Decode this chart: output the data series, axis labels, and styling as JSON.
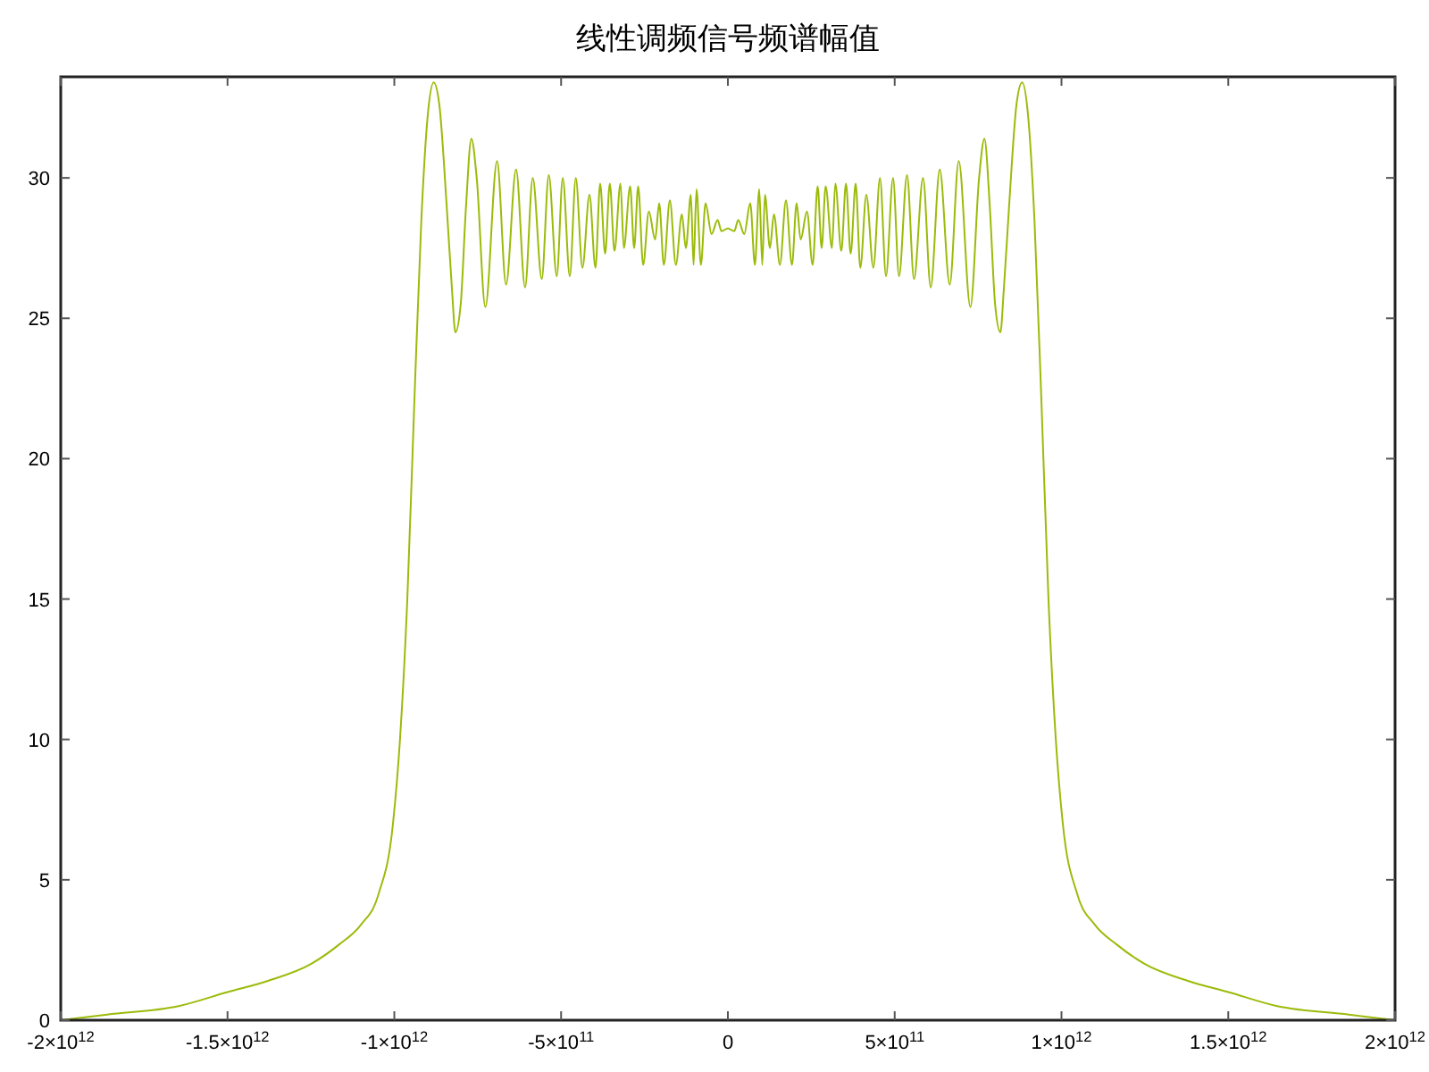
{
  "chart_data": {
    "type": "line",
    "title": "线性调频信号频谱幅值",
    "x": [
      -2000000000000.0,
      -1861000000000.0,
      -1647000000000.0,
      -1500000000000.0,
      -1379000000000.0,
      -1250000000000.0,
      -1165000000000.0,
      -1100000000000.0,
      -1047000000000.0,
      -1004000000000.0,
      -983000000000.0,
      -961000000000.0,
      -940000000000.0,
      -919000000000.0,
      -900000000000.0,
      -882000000000.0,
      -865000000000.0,
      -843000000000.0,
      -827000000000.0,
      -817000000000.0,
      -801000000000.0,
      -785000000000.0,
      -769000000000.0,
      -753000000000.0,
      -727000000000.0,
      -692000000000.0,
      -665000000000.0,
      -635000000000.0,
      -608000000000.0,
      -585000000000.0,
      -558000000000.0,
      -537000000000.0,
      -513000000000.0,
      -495000000000.0,
      -474000000000.0,
      -456000000000.0,
      -436000000000.0,
      -415000000000.0,
      -397000000000.0,
      -383000000000.0,
      -368000000000.0,
      -354000000000.0,
      -340000000000.0,
      -322000000000.0,
      -312000000000.0,
      -293000000000.0,
      -281000000000.0,
      -269000000000.0,
      -254000000000.0,
      -237000000000.0,
      -218000000000.0,
      -206000000000.0,
      -192000000000.0,
      -174000000000.0,
      -156000000000.0,
      -138000000000.0,
      -126000000000.0,
      -111000000000.0,
      -103000000000.0,
      -94000000000.0,
      -81000000000.0,
      -67000000000.0,
      -49000000000.0,
      -31000000000.0,
      -19000000000.0,
      0,
      19000000000.0,
      31000000000.0,
      49000000000.0,
      67000000000.0,
      81000000000.0,
      94000000000.0,
      103000000000.0,
      111000000000.0,
      126000000000.0,
      138000000000.0,
      156000000000.0,
      174000000000.0,
      192000000000.0,
      206000000000.0,
      218000000000.0,
      237000000000.0,
      254000000000.0,
      269000000000.0,
      281000000000.0,
      293000000000.0,
      312000000000.0,
      322000000000.0,
      340000000000.0,
      354000000000.0,
      368000000000.0,
      383000000000.0,
      397000000000.0,
      415000000000.0,
      436000000000.0,
      456000000000.0,
      474000000000.0,
      495000000000.0,
      513000000000.0,
      537000000000.0,
      558000000000.0,
      585000000000.0,
      608000000000.0,
      635000000000.0,
      665000000000.0,
      692000000000.0,
      727000000000.0,
      753000000000.0,
      769000000000.0,
      785000000000.0,
      801000000000.0,
      817000000000.0,
      827000000000.0,
      843000000000.0,
      865000000000.0,
      882000000000.0,
      900000000000.0,
      919000000000.0,
      940000000000.0,
      961000000000.0,
      983000000000.0,
      1004000000000.0,
      1047000000000.0,
      1100000000000.0,
      1165000000000.0,
      1250000000000.0,
      1379000000000.0,
      1500000000000.0,
      1647000000000.0,
      1861000000000.0,
      2000000000000.0
    ],
    "series": [
      {
        "color": "#9bbb0a",
        "values": [
          0,
          0.2,
          0.5,
          1.0,
          1.4,
          2.0,
          2.7,
          3.4,
          4.5,
          7,
          10,
          15,
          22,
          28.5,
          32.2,
          33.4,
          32.6,
          29,
          26,
          24.5,
          25.5,
          29,
          31.4,
          30,
          25.4,
          30.6,
          26.2,
          30.3,
          26.1,
          30.0,
          26.4,
          30.1,
          26.5,
          30.0,
          26.5,
          30.0,
          26.8,
          29.4,
          26.8,
          29.8,
          27.3,
          29.8,
          27.4,
          29.8,
          27.5,
          29.7,
          27.5,
          29.7,
          26.9,
          28.8,
          27.8,
          29.1,
          26.9,
          29.2,
          26.9,
          28.7,
          27.5,
          29.4,
          26.9,
          29.6,
          26.9,
          29.1,
          28.0,
          28.5,
          28.1,
          28.2,
          28.1,
          28.5,
          28.0,
          29.1,
          26.9,
          29.6,
          26.9,
          29.4,
          27.5,
          28.7,
          26.9,
          29.2,
          26.9,
          29.1,
          27.8,
          28.8,
          26.9,
          29.7,
          27.5,
          29.7,
          27.5,
          29.8,
          27.4,
          29.8,
          27.3,
          29.8,
          26.8,
          29.4,
          26.8,
          30.0,
          26.5,
          30.0,
          26.5,
          30.1,
          26.4,
          30.0,
          26.1,
          30.3,
          26.2,
          30.6,
          25.4,
          30,
          31.4,
          29,
          25.5,
          24.5,
          26,
          29,
          32.6,
          33.4,
          32.2,
          28.5,
          22,
          15,
          10,
          7,
          4.5,
          3.4,
          2.7,
          2.0,
          1.4,
          1.0,
          0.5,
          0.2,
          0
        ]
      }
    ],
    "xlim": [
      -2000000000000.0,
      2000000000000.0
    ],
    "ylim": [
      0,
      33.6
    ],
    "xticks": [
      {
        "value": -2000000000000.0,
        "label": "-2×10$^{12}$"
      },
      {
        "value": -1500000000000.0,
        "label": "-1.5×10$^{12}$"
      },
      {
        "value": -1000000000000.0,
        "label": "-1×10$^{12}$"
      },
      {
        "value": -500000000000.0,
        "label": "-5×10$^{11}$"
      },
      0,
      {
        "value": 500000000000.0,
        "label": "5×10$^{11}$"
      },
      {
        "value": 1000000000000.0,
        "label": "1×10$^{12}$"
      },
      {
        "value": 1500000000000.0,
        "label": "1.5×10$^{12}$"
      },
      {
        "value": 2000000000000.0,
        "label": "2×10$^{12}$"
      }
    ],
    "yticks": [
      0,
      5,
      10,
      15,
      20,
      25,
      30
    ],
    "grid": false,
    "marker": "none",
    "line_style": "solid"
  }
}
